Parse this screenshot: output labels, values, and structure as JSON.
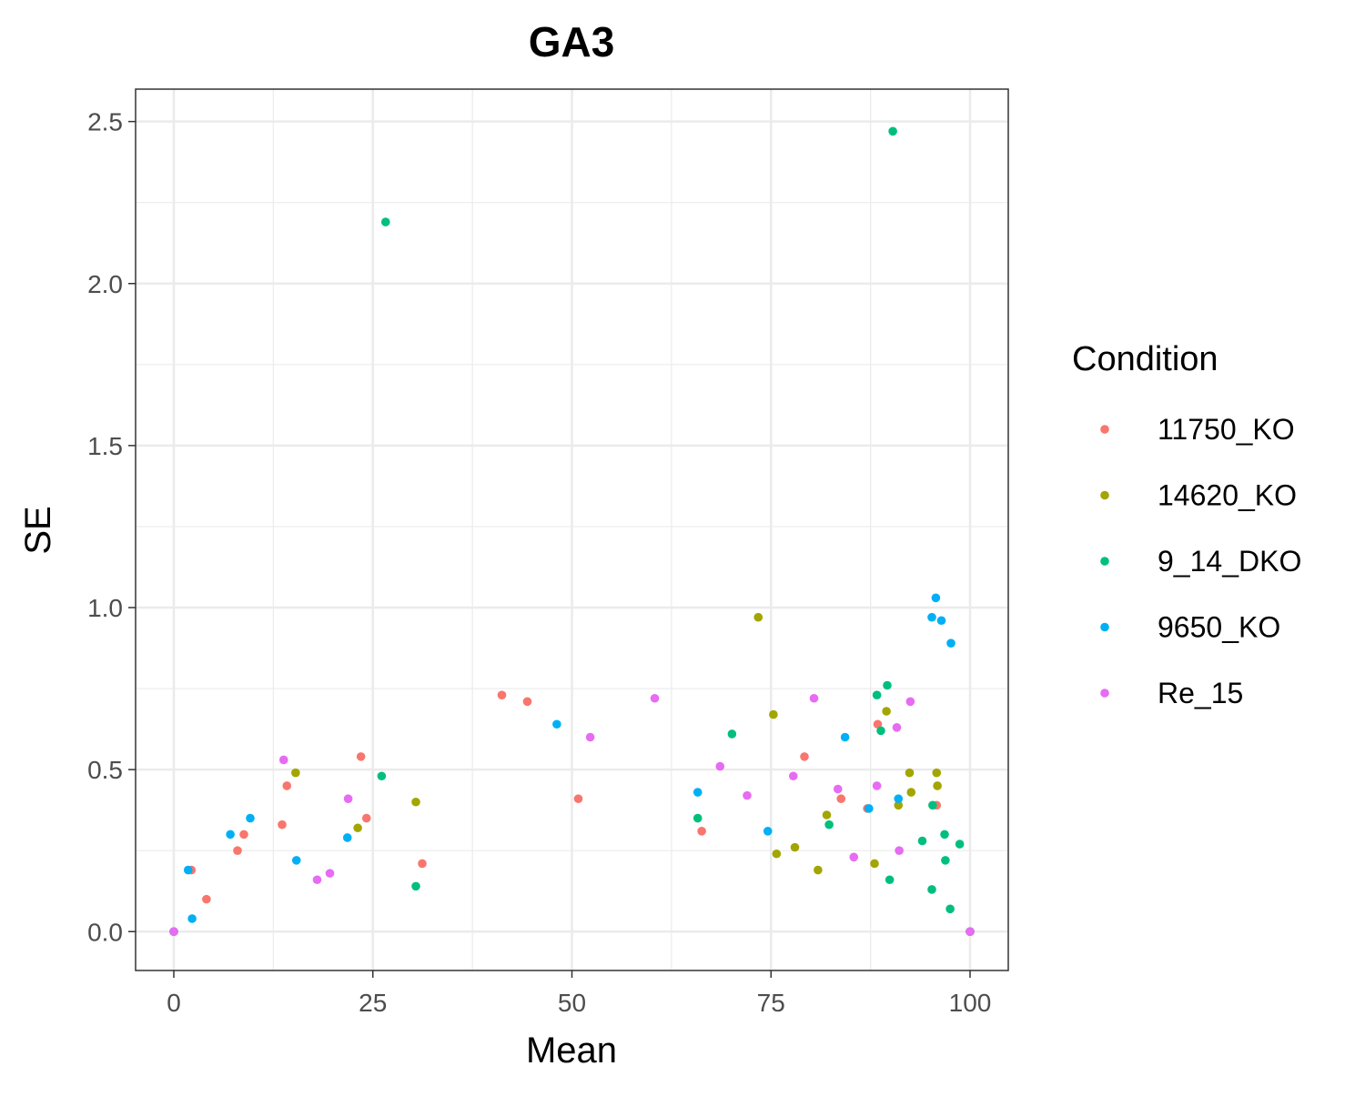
{
  "chart_data": {
    "type": "scatter",
    "title": "GA3",
    "xlabel": "Mean",
    "ylabel": "SE",
    "xlim": [
      -4.8,
      104.8
    ],
    "ylim": [
      -0.12,
      2.6
    ],
    "xticks": [
      0,
      25,
      50,
      75,
      100
    ],
    "xtick_labels": [
      "0",
      "25",
      "50",
      "75",
      "100"
    ],
    "yticks": [
      0.0,
      0.5,
      1.0,
      1.5,
      2.0,
      2.5
    ],
    "ytick_labels": [
      "0.0",
      "0.5",
      "1.0",
      "1.5",
      "2.0",
      "2.5"
    ],
    "grid": true,
    "legend": {
      "title": "Condition",
      "placement": "right"
    },
    "series": [
      {
        "name": "11750_KO",
        "color": "#F8766D",
        "points": [
          [
            0,
            0
          ],
          [
            2.2,
            0.19
          ],
          [
            4.1,
            0.1
          ],
          [
            8.0,
            0.25
          ],
          [
            8.8,
            0.3
          ],
          [
            13.6,
            0.33
          ],
          [
            14.2,
            0.45
          ],
          [
            23.5,
            0.54
          ],
          [
            24.2,
            0.35
          ],
          [
            31.2,
            0.21
          ],
          [
            41.2,
            0.73
          ],
          [
            44.4,
            0.71
          ],
          [
            50.8,
            0.41
          ],
          [
            66.3,
            0.31
          ],
          [
            79.2,
            0.54
          ],
          [
            83.8,
            0.41
          ],
          [
            87.1,
            0.38
          ],
          [
            88.4,
            0.64
          ],
          [
            95.8,
            0.39
          ],
          [
            100,
            0
          ]
        ]
      },
      {
        "name": "14620_KO",
        "color": "#A3A500",
        "points": [
          [
            0,
            0
          ],
          [
            15.3,
            0.49
          ],
          [
            23.1,
            0.32
          ],
          [
            30.4,
            0.4
          ],
          [
            73.4,
            0.97
          ],
          [
            75.3,
            0.67
          ],
          [
            75.7,
            0.24
          ],
          [
            78.0,
            0.26
          ],
          [
            80.9,
            0.19
          ],
          [
            82.0,
            0.36
          ],
          [
            88.0,
            0.21
          ],
          [
            89.5,
            0.68
          ],
          [
            91.0,
            0.39
          ],
          [
            92.4,
            0.49
          ],
          [
            92.6,
            0.43
          ],
          [
            95.8,
            0.49
          ],
          [
            95.9,
            0.45
          ],
          [
            100,
            0
          ]
        ]
      },
      {
        "name": "9_14_DKO",
        "color": "#00BF7D",
        "points": [
          [
            0,
            0
          ],
          [
            26.1,
            0.48
          ],
          [
            26.6,
            2.19
          ],
          [
            30.4,
            0.14
          ],
          [
            65.8,
            0.35
          ],
          [
            70.1,
            0.61
          ],
          [
            82.3,
            0.33
          ],
          [
            88.3,
            0.73
          ],
          [
            88.8,
            0.62
          ],
          [
            89.6,
            0.76
          ],
          [
            89.9,
            0.16
          ],
          [
            90.3,
            2.47
          ],
          [
            94.0,
            0.28
          ],
          [
            95.2,
            0.13
          ],
          [
            95.3,
            0.39
          ],
          [
            96.8,
            0.3
          ],
          [
            96.9,
            0.22
          ],
          [
            97.5,
            0.07
          ],
          [
            98.7,
            0.27
          ],
          [
            100,
            0
          ]
        ]
      },
      {
        "name": "9650_KO",
        "color": "#00B0F6",
        "points": [
          [
            0,
            0
          ],
          [
            1.8,
            0.19
          ],
          [
            2.3,
            0.04
          ],
          [
            7.1,
            0.3
          ],
          [
            9.6,
            0.35
          ],
          [
            15.4,
            0.22
          ],
          [
            21.8,
            0.29
          ],
          [
            48.1,
            0.64
          ],
          [
            65.8,
            0.43
          ],
          [
            74.6,
            0.31
          ],
          [
            84.3,
            0.6
          ],
          [
            87.3,
            0.38
          ],
          [
            91.0,
            0.41
          ],
          [
            95.2,
            0.97
          ],
          [
            95.7,
            1.03
          ],
          [
            96.4,
            0.96
          ],
          [
            97.6,
            0.89
          ],
          [
            100,
            0
          ]
        ]
      },
      {
        "name": "Re_15",
        "color": "#E76BF3",
        "points": [
          [
            0,
            0
          ],
          [
            13.8,
            0.53
          ],
          [
            18.0,
            0.16
          ],
          [
            19.6,
            0.18
          ],
          [
            21.9,
            0.41
          ],
          [
            52.3,
            0.6
          ],
          [
            60.4,
            0.72
          ],
          [
            68.6,
            0.51
          ],
          [
            72.0,
            0.42
          ],
          [
            77.8,
            0.48
          ],
          [
            80.4,
            0.72
          ],
          [
            83.4,
            0.44
          ],
          [
            85.4,
            0.23
          ],
          [
            88.3,
            0.45
          ],
          [
            90.8,
            0.63
          ],
          [
            91.1,
            0.25
          ],
          [
            92.5,
            0.71
          ],
          [
            100,
            0
          ]
        ]
      }
    ]
  }
}
